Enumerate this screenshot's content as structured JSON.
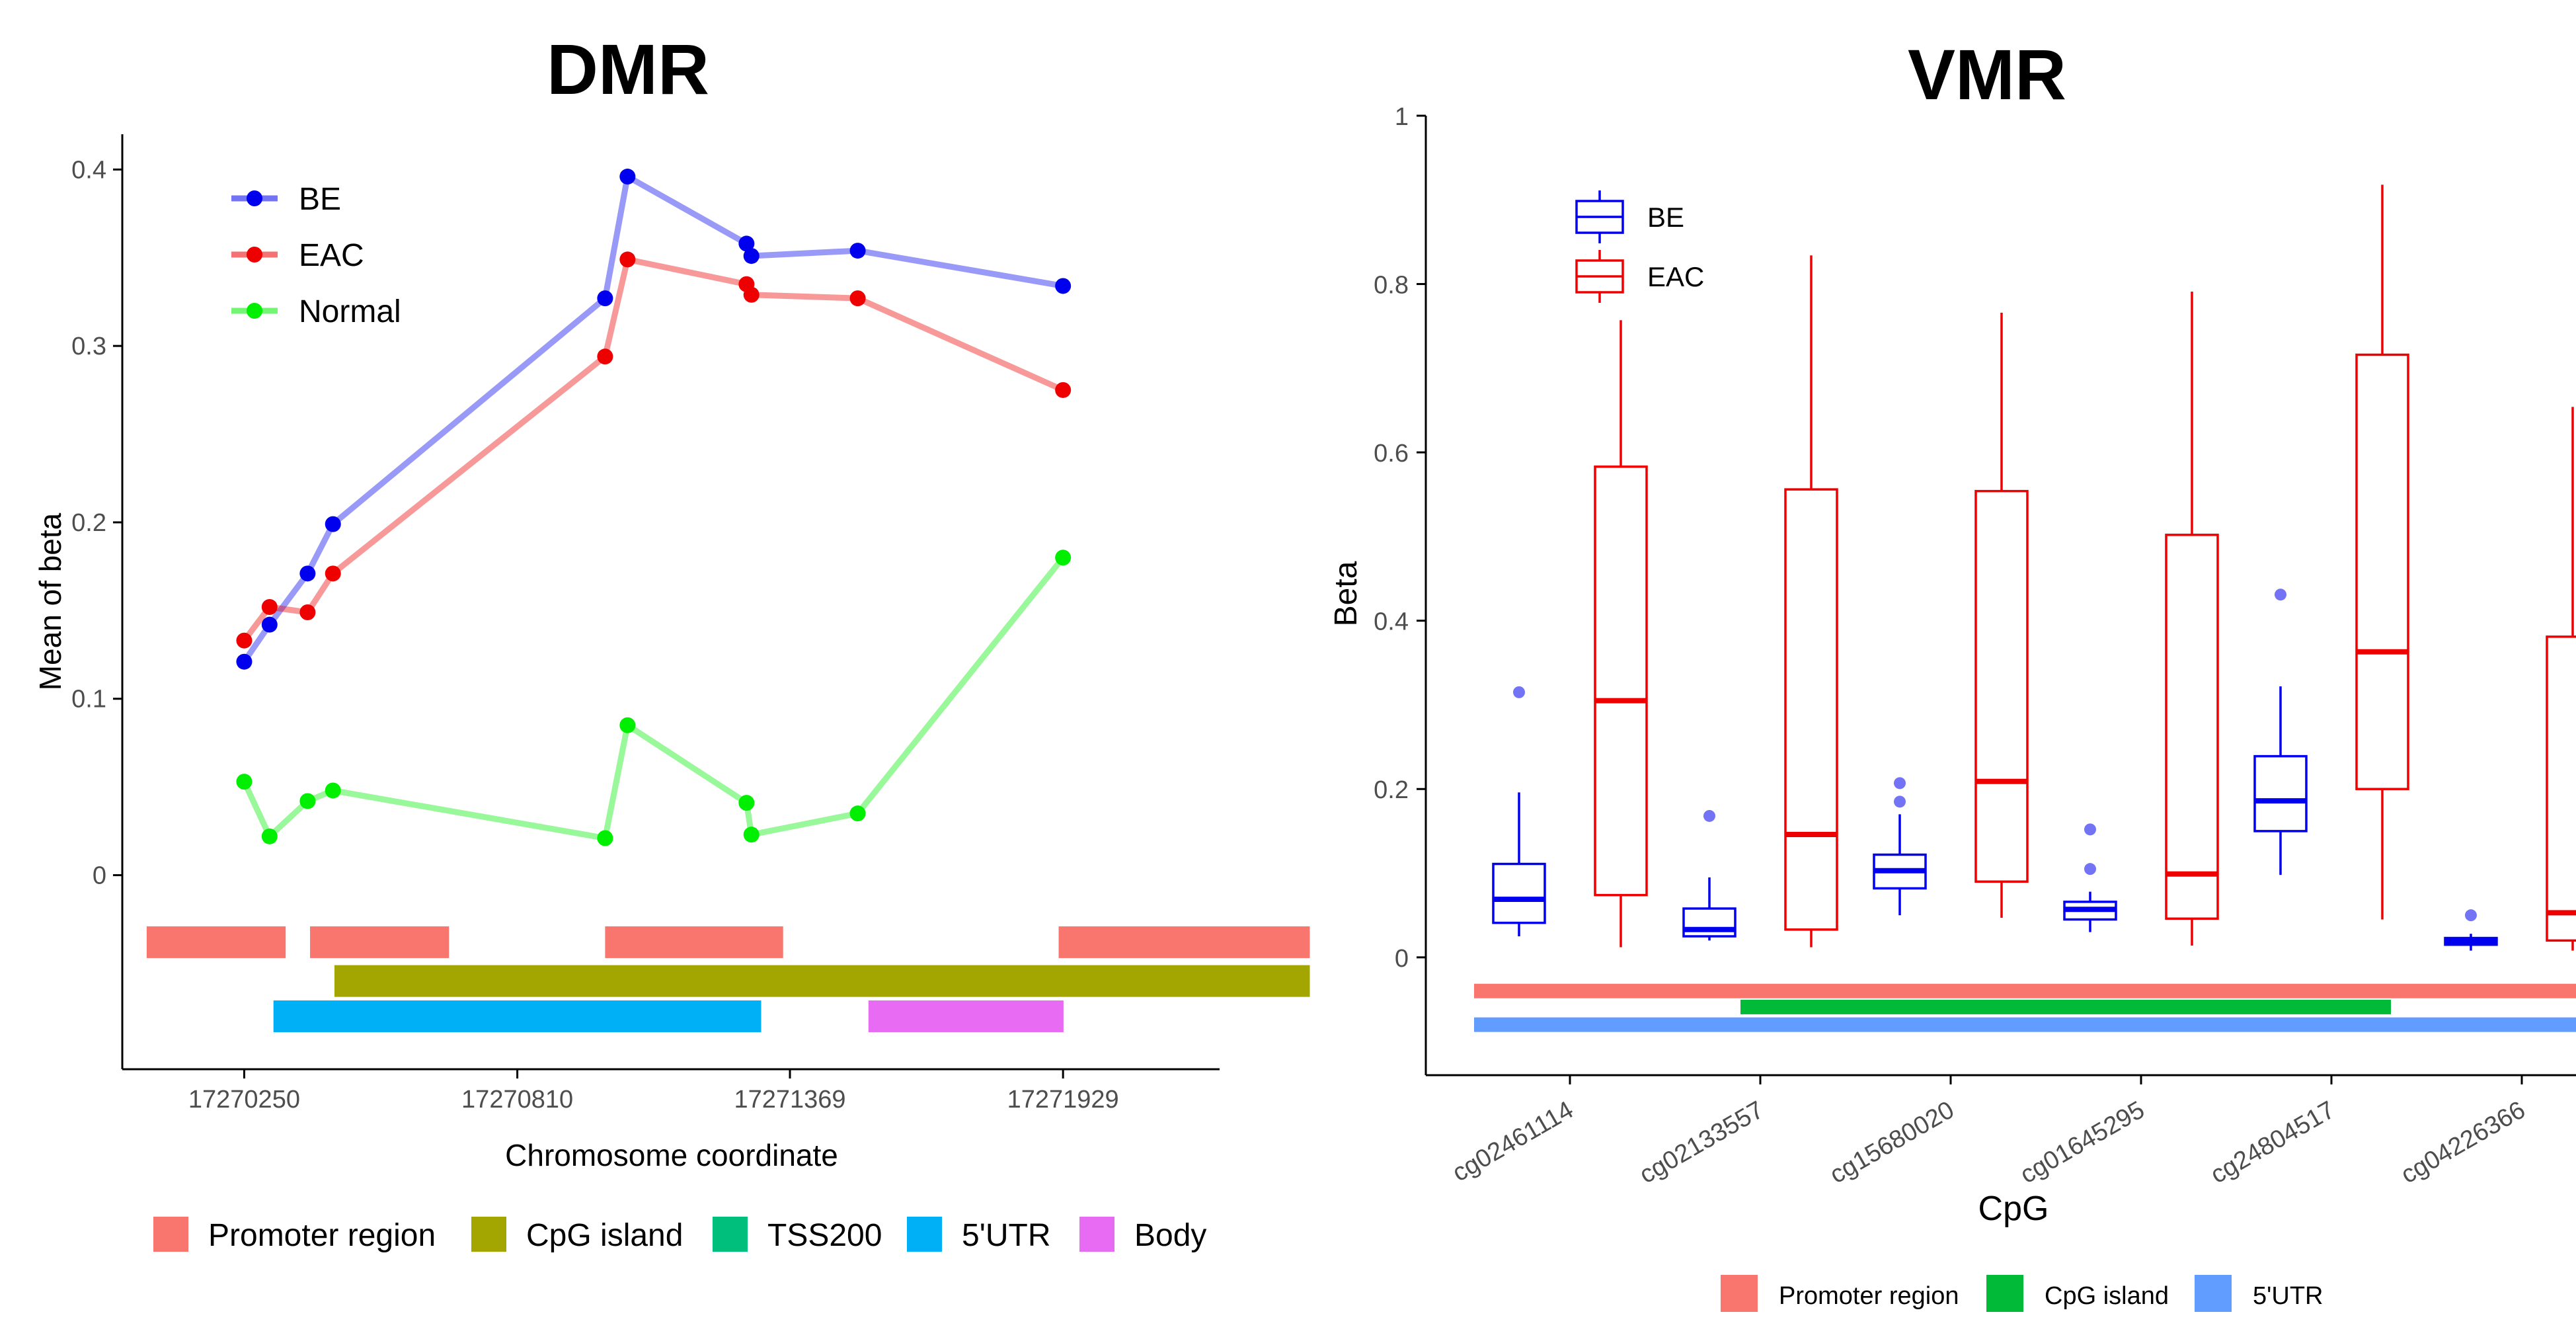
{
  "chart_data": [
    {
      "type": "line",
      "title": "DMR",
      "xlabel": "Chromosome coordinate",
      "ylabel": "Mean of beta",
      "xlim": [
        17270000,
        17272250
      ],
      "ylim": [
        -0.11,
        0.42
      ],
      "xticks": [
        17270250,
        17270810,
        17271369,
        17271929
      ],
      "xtick_labels": [
        "17270250",
        "17270810",
        "17271369",
        "17271929"
      ],
      "yticks": [
        0,
        0.1,
        0.2,
        0.3,
        0.4
      ],
      "ytick_labels": [
        "0",
        "0.1",
        "0.2",
        "0.3",
        "0.4"
      ],
      "legend_position": "top-left",
      "grid": false,
      "series": [
        {
          "name": "BE",
          "color": "#0000ee",
          "x": [
            17270250,
            17270302,
            17270380,
            17270432,
            17270990,
            17271036,
            17271280,
            17271290,
            17271508,
            17271929
          ],
          "y": [
            0.121,
            0.142,
            0.171,
            0.199,
            0.327,
            0.396,
            0.358,
            0.351,
            0.354,
            0.334
          ]
        },
        {
          "name": "EAC",
          "color": "#ee0000",
          "x": [
            17270250,
            17270302,
            17270380,
            17270432,
            17270990,
            17271036,
            17271280,
            17271290,
            17271508,
            17271929
          ],
          "y": [
            0.133,
            0.152,
            0.149,
            0.171,
            0.294,
            0.349,
            0.335,
            0.329,
            0.327,
            0.275
          ]
        },
        {
          "name": "Normal",
          "color": "#00ee00",
          "x": [
            17270250,
            17270302,
            17270380,
            17270432,
            17270990,
            17271036,
            17271280,
            17271290,
            17271508,
            17271929
          ],
          "y": [
            0.053,
            0.022,
            0.042,
            0.048,
            0.021,
            0.085,
            0.041,
            0.023,
            0.035,
            0.18
          ]
        }
      ],
      "annotation_tracks": [
        {
          "feature": "Promoter region",
          "row": 1,
          "start": 17270050,
          "end": 17270335
        },
        {
          "feature": "Promoter region",
          "row": 1,
          "start": 17270385,
          "end": 17270670
        },
        {
          "feature": "Promoter region",
          "row": 1,
          "start": 17270990,
          "end": 17271355
        },
        {
          "feature": "Promoter region",
          "row": 1,
          "start": 17271920,
          "end": 17272435
        },
        {
          "feature": "CpG island",
          "row": 2,
          "start": 17270435,
          "end": 17272435
        },
        {
          "feature": "5'UTR",
          "row": 3,
          "start": 17270310,
          "end": 17271310
        },
        {
          "feature": "Body",
          "row": 3,
          "start": 17271530,
          "end": 17271930
        }
      ],
      "track_legend": [
        {
          "label": "Promoter region",
          "color": "#f8766d"
        },
        {
          "label": "CpG island",
          "color": "#a3a500"
        },
        {
          "label": "TSS200",
          "color": "#00bf7d"
        },
        {
          "label": "5'UTR",
          "color": "#00b0f6"
        },
        {
          "label": "Body",
          "color": "#e76bf3"
        }
      ]
    },
    {
      "type": "box",
      "title": "VMR",
      "xlabel": "CpG",
      "ylabel": "Beta",
      "categories": [
        "cg02461114",
        "cg02133557",
        "cg15680020",
        "cg01645295",
        "cg24804517",
        "cg04226366"
      ],
      "ylim": [
        -0.14,
        1.0
      ],
      "yticks": [
        0,
        0.2,
        0.4,
        0.6,
        0.8,
        1
      ],
      "ytick_labels": [
        "0",
        "0.2",
        "0.4",
        "0.6",
        "0.8",
        "1"
      ],
      "legend_position": "top-left",
      "grid": false,
      "series": [
        {
          "name": "BE",
          "color": "#0000ee",
          "boxes": [
            {
              "min": 0.025,
              "q1": 0.041,
              "median": 0.069,
              "q3": 0.111,
              "max": 0.196,
              "outliers": [
                0.315
              ]
            },
            {
              "min": 0.02,
              "q1": 0.025,
              "median": 0.033,
              "q3": 0.058,
              "max": 0.095,
              "outliers": [
                0.168
              ]
            },
            {
              "min": 0.05,
              "q1": 0.082,
              "median": 0.103,
              "q3": 0.122,
              "max": 0.17,
              "outliers": [
                0.185,
                0.207
              ]
            },
            {
              "min": 0.03,
              "q1": 0.045,
              "median": 0.057,
              "q3": 0.066,
              "max": 0.078,
              "outliers": [
                0.105,
                0.152
              ]
            },
            {
              "min": 0.098,
              "q1": 0.15,
              "median": 0.186,
              "q3": 0.239,
              "max": 0.322,
              "outliers": [
                0.431
              ]
            },
            {
              "min": 0.008,
              "q1": 0.015,
              "median": 0.019,
              "q3": 0.023,
              "max": 0.028,
              "outliers": [
                0.05
              ]
            }
          ]
        },
        {
          "name": "EAC",
          "color": "#ee0000",
          "boxes": [
            {
              "min": 0.012,
              "q1": 0.074,
              "median": 0.305,
              "q3": 0.583,
              "max": 0.757,
              "outliers": []
            },
            {
              "min": 0.012,
              "q1": 0.033,
              "median": 0.146,
              "q3": 0.556,
              "max": 0.834,
              "outliers": []
            },
            {
              "min": 0.047,
              "q1": 0.09,
              "median": 0.209,
              "q3": 0.554,
              "max": 0.766,
              "outliers": []
            },
            {
              "min": 0.014,
              "q1": 0.046,
              "median": 0.099,
              "q3": 0.502,
              "max": 0.791,
              "outliers": []
            },
            {
              "min": 0.045,
              "q1": 0.2,
              "median": 0.363,
              "q3": 0.716,
              "max": 0.918,
              "outliers": []
            },
            {
              "min": 0.008,
              "q1": 0.02,
              "median": 0.053,
              "q3": 0.381,
              "max": 0.654,
              "outliers": []
            }
          ]
        }
      ],
      "annotation_tracks": [
        {
          "feature": "Promoter region",
          "row": 1,
          "from": "cg02461114",
          "to": "cg04226366"
        },
        {
          "feature": "CpG island",
          "row": 2,
          "from": "cg02133557",
          "to": "cg24804517"
        },
        {
          "feature": "5'UTR",
          "row": 3,
          "from": "cg02461114",
          "to": "cg04226366"
        }
      ],
      "track_legend": [
        {
          "label": "Promoter region",
          "color": "#f8766d"
        },
        {
          "label": "CpG island",
          "color": "#00ba38"
        },
        {
          "label": "5'UTR",
          "color": "#619cff"
        }
      ]
    }
  ]
}
